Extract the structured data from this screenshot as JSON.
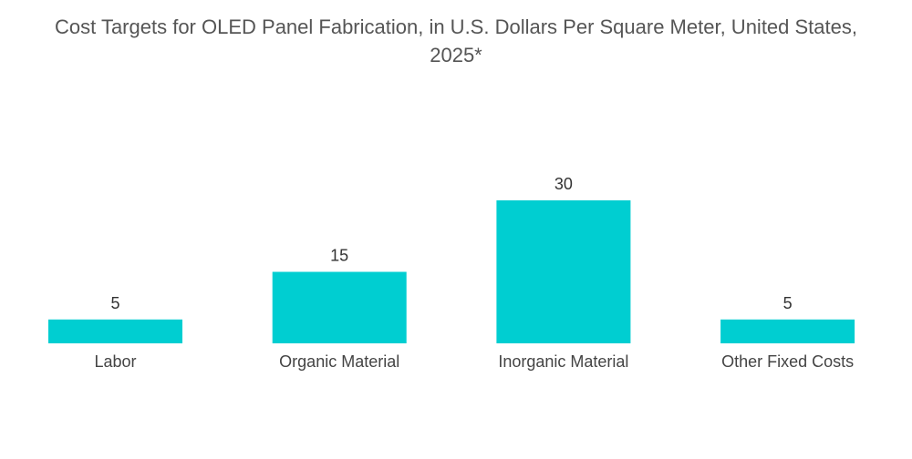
{
  "chart_data": {
    "type": "bar",
    "title_line1": "Cost Targets for OLED Panel Fabrication, in U.S. Dollars Per Square Meter, United States,",
    "title_line2": "2025*",
    "categories": [
      "Labor",
      "Organic Material",
      "Inorganic Material",
      "Other Fixed Costs"
    ],
    "values": [
      5,
      15,
      30,
      5
    ],
    "value_labels": [
      "5",
      "15",
      "30",
      "5"
    ],
    "xlabel": "",
    "ylabel": "",
    "ylim": [
      0,
      30
    ],
    "grid": false,
    "legend": "none",
    "bar_color": "#00CED1"
  }
}
